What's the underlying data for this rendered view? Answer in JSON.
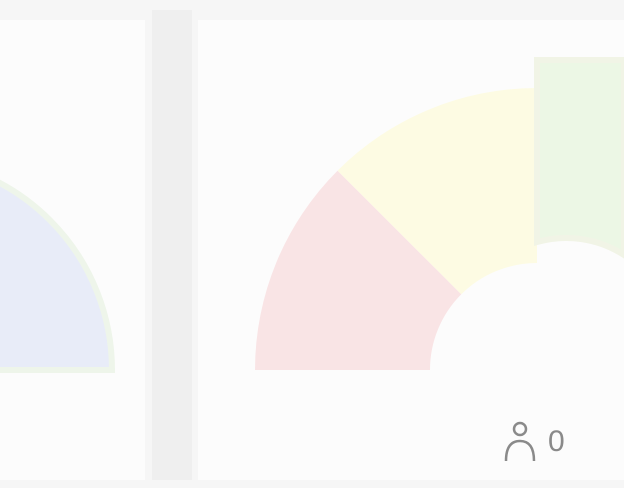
{
  "user_count": "0"
}
